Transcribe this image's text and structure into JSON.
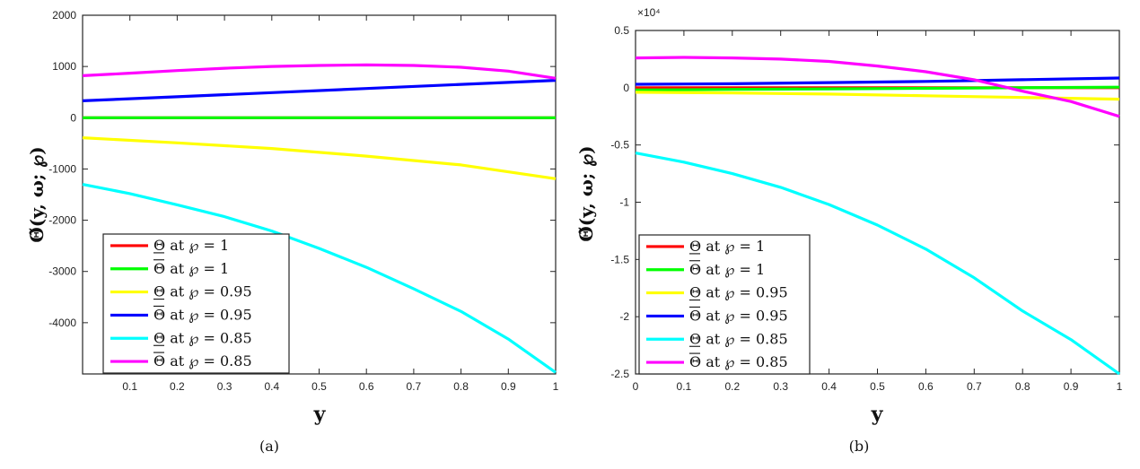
{
  "chart_data": [
    {
      "type": "line",
      "caption": "(a)",
      "xlabel": "y",
      "ylabel": "Θ̃(y, ω; ℘)",
      "xlim": [
        0,
        1
      ],
      "ylim": [
        -5000,
        2000
      ],
      "xticks": [
        0.1,
        0.2,
        0.3,
        0.4,
        0.5,
        0.6,
        0.7,
        0.8,
        0.9,
        1
      ],
      "xtick_labels": [
        "0.1",
        "0.2",
        "0.3",
        "0.4",
        "0.5",
        "0.6",
        "0.7",
        "0.8",
        "0.9",
        "1"
      ],
      "yticks": [
        2000,
        1000,
        0,
        -1000,
        -2000,
        -3000,
        -4000
      ],
      "ytick_labels": [
        "2000",
        "1000",
        "0",
        "-1000",
        "-2000",
        "-3000",
        "-4000"
      ],
      "legend_position": "bottom-left",
      "series": [
        {
          "name": "Θ at ℘ = 1",
          "color": "#ff0000",
          "bar": "under",
          "x": [
            0,
            0.2,
            0.4,
            0.6,
            0.8,
            1
          ],
          "y": [
            0,
            0,
            0,
            0,
            0,
            0
          ]
        },
        {
          "name": "Θ at ℘ = 1",
          "color": "#00ff00",
          "bar": "over",
          "x": [
            0,
            0.2,
            0.4,
            0.6,
            0.8,
            1
          ],
          "y": [
            0,
            0,
            0,
            0,
            0,
            0
          ]
        },
        {
          "name": "Θ at ℘ = 0.95",
          "color": "#ffff00",
          "bar": "under",
          "x": [
            0,
            0.2,
            0.4,
            0.6,
            0.8,
            1
          ],
          "y": [
            -390,
            -490,
            -600,
            -750,
            -920,
            -1190
          ]
        },
        {
          "name": "Θ at ℘ = 0.95",
          "color": "#0000ff",
          "bar": "over",
          "x": [
            0,
            0.2,
            0.4,
            0.6,
            0.8,
            1
          ],
          "y": [
            330,
            410,
            490,
            570,
            650,
            730
          ]
        },
        {
          "name": "Θ at ℘ = 0.85",
          "color": "#00ffff",
          "bar": "under",
          "x": [
            0,
            0.1,
            0.2,
            0.3,
            0.4,
            0.5,
            0.6,
            0.7,
            0.8,
            0.9,
            1
          ],
          "y": [
            -1300,
            -1480,
            -1700,
            -1930,
            -2210,
            -2550,
            -2920,
            -3340,
            -3780,
            -4320,
            -4970
          ]
        },
        {
          "name": "Θ at ℘ = 0.85",
          "color": "#ff00ff",
          "bar": "over",
          "x": [
            0,
            0.1,
            0.2,
            0.3,
            0.4,
            0.5,
            0.6,
            0.7,
            0.8,
            0.9,
            1
          ],
          "y": [
            820,
            870,
            920,
            965,
            1000,
            1020,
            1030,
            1020,
            985,
            910,
            770
          ]
        }
      ]
    },
    {
      "type": "line",
      "caption": "(b)",
      "xlabel": "y",
      "ylabel": "Θ̃(y, ω; ℘)",
      "exponent_label": "×10⁴",
      "xlim": [
        0,
        1
      ],
      "ylim": [
        -2.5,
        0.5
      ],
      "xticks": [
        0,
        0.1,
        0.2,
        0.3,
        0.4,
        0.5,
        0.6,
        0.7,
        0.8,
        0.9,
        1
      ],
      "xtick_labels": [
        "0",
        "0.1",
        "0.2",
        "0.3",
        "0.4",
        "0.5",
        "0.6",
        "0.7",
        "0.8",
        "0.9",
        "1"
      ],
      "yticks": [
        0.5,
        0,
        -0.5,
        -1,
        -1.5,
        -2,
        -2.5
      ],
      "ytick_labels": [
        "0.5",
        "0",
        "-0.5",
        "-1",
        "-1.5",
        "-2",
        "-2.5"
      ],
      "legend_position": "bottom-left",
      "series": [
        {
          "name": "Θ at ℘ = 1",
          "color": "#ff0000",
          "bar": "under",
          "x": [
            0,
            0.2,
            0.4,
            0.6,
            0.8,
            1
          ],
          "y": [
            0,
            0,
            0,
            0,
            0,
            0
          ]
        },
        {
          "name": "Θ at ℘ = 1",
          "color": "#00ff00",
          "bar": "over",
          "x": [
            0,
            0.2,
            0.4,
            0.6,
            0.8,
            1
          ],
          "y": [
            -0.02,
            -0.015,
            -0.01,
            -0.005,
            0,
            0.005
          ]
        },
        {
          "name": "Θ at ℘ = 0.95",
          "color": "#ffff00",
          "bar": "under",
          "x": [
            0,
            0.2,
            0.4,
            0.6,
            0.8,
            1
          ],
          "y": [
            -0.04,
            -0.045,
            -0.055,
            -0.07,
            -0.085,
            -0.1
          ]
        },
        {
          "name": "Θ at ℘ = 0.95",
          "color": "#0000ff",
          "bar": "over",
          "x": [
            0,
            0.2,
            0.4,
            0.6,
            0.8,
            1
          ],
          "y": [
            0.03,
            0.035,
            0.045,
            0.055,
            0.07,
            0.085
          ]
        },
        {
          "name": "Θ at ℘ = 0.85",
          "color": "#00ffff",
          "bar": "under",
          "x": [
            0,
            0.1,
            0.2,
            0.3,
            0.4,
            0.5,
            0.6,
            0.7,
            0.8,
            0.9,
            1
          ],
          "y": [
            -0.57,
            -0.65,
            -0.75,
            -0.87,
            -1.02,
            -1.2,
            -1.41,
            -1.66,
            -1.95,
            -2.2,
            -2.5
          ]
        },
        {
          "name": "Θ at ℘ = 0.85",
          "color": "#ff00ff",
          "bar": "over",
          "x": [
            0,
            0.1,
            0.2,
            0.3,
            0.4,
            0.5,
            0.6,
            0.7,
            0.8,
            0.9,
            1
          ],
          "y": [
            0.26,
            0.265,
            0.26,
            0.25,
            0.23,
            0.19,
            0.14,
            0.07,
            -0.03,
            -0.12,
            -0.25
          ]
        }
      ]
    }
  ]
}
